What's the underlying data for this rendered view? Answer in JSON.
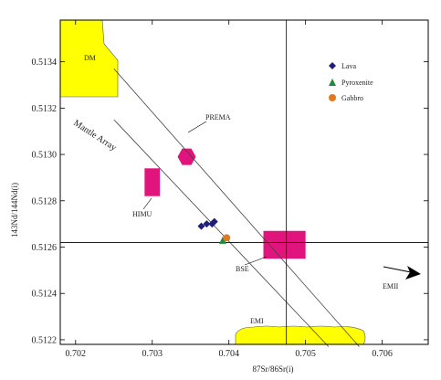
{
  "chart_data": {
    "type": "scatter",
    "title": "",
    "xlabel": "87Sr/86Sr(i)",
    "ylabel": "143Nd/144Nd(i)",
    "xlim": [
      0.7018,
      0.7066
    ],
    "ylim": [
      0.51218,
      0.51358
    ],
    "xticks": [
      0.702,
      0.703,
      0.704,
      0.705,
      0.706
    ],
    "xtick_labels": [
      "0.702",
      "0.703",
      "0.704",
      "0.705",
      "0.706"
    ],
    "yticks": [
      0.5122,
      0.5124,
      0.5126,
      0.5128,
      0.513,
      0.5132,
      0.5134
    ],
    "ytick_labels": [
      "0.5122",
      "0.5124",
      "0.5126",
      "0.5128",
      "0.5130",
      "0.5132",
      "0.5134"
    ],
    "legend_position": "top-right",
    "series": [
      {
        "name": "Lava",
        "marker": "diamond",
        "color": "#1f1f7a",
        "points": [
          [
            0.70364,
            0.51269
          ],
          [
            0.70371,
            0.5127
          ],
          [
            0.70378,
            0.5127
          ],
          [
            0.70381,
            0.51271
          ]
        ]
      },
      {
        "name": "Pyroxenite",
        "marker": "triangle",
        "color": "#1e8a3a",
        "points": [
          [
            0.70392,
            0.51263
          ]
        ]
      },
      {
        "name": "Gabbro",
        "marker": "circle",
        "color": "#e07a20",
        "points": [
          [
            0.70397,
            0.51264
          ]
        ]
      }
    ],
    "reference_lines": {
      "vertical_x": 0.70475,
      "horizontal_y": 0.51262
    },
    "mantle_array_lines": [
      {
        "from": [
          0.7025,
          0.51337
        ],
        "to": [
          0.7057,
          0.51217
        ]
      },
      {
        "from": [
          0.7025,
          0.51315
        ],
        "to": [
          0.7053,
          0.51217
        ]
      }
    ],
    "fields": [
      {
        "label": "DM",
        "color": "#ffff00"
      },
      {
        "label": "PREMA",
        "color": "#e0147c",
        "center": [
          0.70345,
          0.51299
        ]
      },
      {
        "label": "HIMU",
        "color": "#e0147c",
        "x_range": [
          0.7029,
          0.7031
        ],
        "y_range": [
          0.51282,
          0.51294
        ]
      },
      {
        "label": "BSE",
        "color": "#e0147c",
        "x_range": [
          0.70445,
          0.705
        ],
        "y_range": [
          0.51255,
          0.51267
        ]
      },
      {
        "label": "EMI",
        "color": "#ffff00"
      }
    ],
    "annotations": [
      "Mantle Array",
      "EMII"
    ]
  }
}
